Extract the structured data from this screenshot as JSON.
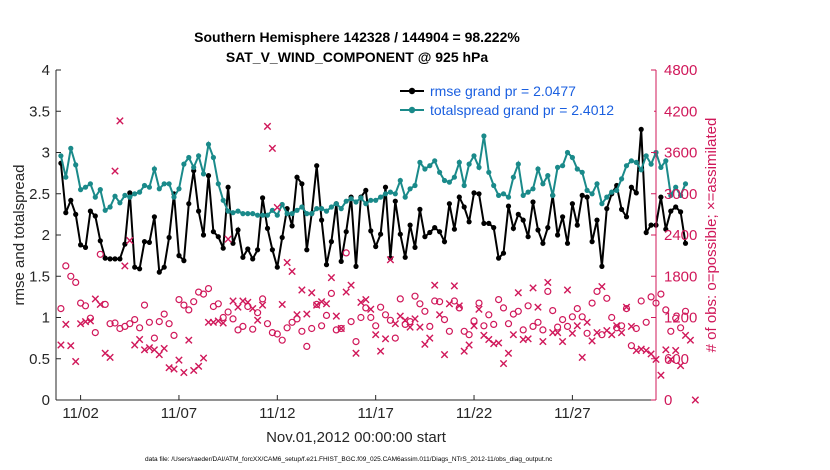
{
  "chart_data": {
    "type": "line",
    "title": "Southern Hemisphere 142328 / 144904 = 98.222%",
    "subtitle": "SAT_V_WIND_COMPONENT @ 925 hPa",
    "xlabel": "Nov.01,2012 00:00:00 start",
    "ylabel_left": "rmse and totalspread",
    "ylabel_right": "# of obs: o=possible; ×=assimilated",
    "footnote": "data file: /Users/raeder/DAI/ATM_forcXX/CAM6_setup/f.e21.FHIST_BGC.f09_025.CAM6assim.011/Diags_NTrS_2012-11/obs_diag_output.nc",
    "x_ticks": [
      "11/02",
      "11/07",
      "11/12",
      "11/17",
      "11/22",
      "11/27"
    ],
    "x_tick_days": [
      2,
      7,
      12,
      17,
      22,
      27
    ],
    "x_range_days": [
      0.75,
      31.25
    ],
    "y_left_ticks": [
      "0",
      "0.5",
      "1",
      "1.5",
      "2",
      "2.5",
      "3",
      "3.5",
      "4"
    ],
    "y_left_range": [
      0,
      4
    ],
    "y_right_ticks": [
      "0",
      "600",
      "1200",
      "1800",
      "2400",
      "3000",
      "3600",
      "4200",
      "4800"
    ],
    "y_right_range": [
      0,
      4800
    ],
    "grid": false,
    "legend_position": "top-right",
    "series": [
      {
        "name": "rmse grand pr = 2.0477",
        "color": "#000000",
        "axis": "left",
        "marker": "dot",
        "values": [
          2.87,
          2.27,
          2.42,
          2.25,
          1.88,
          1.85,
          2.29,
          2.23,
          1.93,
          1.72,
          1.71,
          1.71,
          1.71,
          1.89,
          2.51,
          1.61,
          1.59,
          1.92,
          1.91,
          2.22,
          1.55,
          1.61,
          1.97,
          2.5,
          1.75,
          1.69,
          2.38,
          2.78,
          2.29,
          2.0,
          2.72,
          2.04,
          1.98,
          1.84,
          2.58,
          1.9,
          2.06,
          1.73,
          1.83,
          1.71,
          1.82,
          2.45,
          2.08,
          1.82,
          1.61,
          1.97,
          2.32,
          2.11,
          2.7,
          2.62,
          1.82,
          2.26,
          2.84,
          2.18,
          1.64,
          1.92,
          2.38,
          1.68,
          2.04,
          2.46,
          1.62,
          2.46,
          2.54,
          2.05,
          1.86,
          2.01,
          2.58,
          1.72,
          2.41,
          2.01,
          1.73,
          2.12,
          1.85,
          2.31,
          1.98,
          2.03,
          2.09,
          2.04,
          1.92,
          2.38,
          2.07,
          2.46,
          2.34,
          2.16,
          2.51,
          2.5,
          2.14,
          2.14,
          2.09,
          1.72,
          1.78,
          2.35,
          2.08,
          2.25,
          2.18,
          1.98,
          2.4,
          2.06,
          1.9,
          2.09,
          2.48,
          2.0,
          2.22,
          1.9,
          2.38,
          2.12,
          2.48,
          2.46,
          1.92,
          2.18,
          1.62,
          2.32,
          2.5,
          2.6,
          2.31,
          2.22,
          2.58,
          2.51,
          3.28,
          2.03,
          2.12,
          2.12,
          2.46,
          2.07,
          2.29,
          2.34,
          2.28,
          1.9
        ],
        "x_start_day": 1.0,
        "x_step_days": 0.25
      },
      {
        "name": "totalspread grand pr = 2.4012",
        "color": "#1a8a8a",
        "axis": "left",
        "marker": "dot",
        "values": [
          2.96,
          2.7,
          3.05,
          2.85,
          2.55,
          2.58,
          2.62,
          2.46,
          2.55,
          2.3,
          2.34,
          2.47,
          2.39,
          2.48,
          2.46,
          2.5,
          2.52,
          2.6,
          2.58,
          2.8,
          2.56,
          2.62,
          2.62,
          2.46,
          2.56,
          2.86,
          2.94,
          2.82,
          2.96,
          2.74,
          3.1,
          2.94,
          2.62,
          2.42,
          2.29,
          2.27,
          2.29,
          2.26,
          2.26,
          2.26,
          2.24,
          2.24,
          2.24,
          2.3,
          2.24,
          2.37,
          2.26,
          2.26,
          2.3,
          2.34,
          2.26,
          2.26,
          2.32,
          2.32,
          2.29,
          2.34,
          2.38,
          2.32,
          2.41,
          2.44,
          2.4,
          2.45,
          2.38,
          2.42,
          2.42,
          2.46,
          2.5,
          2.52,
          2.5,
          2.66,
          2.46,
          2.56,
          2.6,
          2.88,
          2.8,
          2.84,
          2.9,
          2.76,
          2.66,
          2.64,
          2.7,
          2.88,
          2.6,
          2.86,
          2.96,
          2.82,
          3.2,
          2.76,
          2.6,
          2.48,
          2.5,
          2.46,
          2.7,
          2.86,
          2.48,
          2.52,
          2.56,
          2.8,
          2.62,
          2.72,
          2.48,
          2.82,
          2.84,
          3.0,
          2.94,
          2.8,
          2.76,
          2.54,
          2.5,
          2.62,
          2.38,
          2.46,
          2.52,
          2.54,
          2.68,
          2.84,
          2.9,
          2.88,
          2.79,
          2.96,
          2.86,
          3.0,
          2.82,
          2.9,
          2.48,
          2.58,
          2.48,
          2.62
        ],
        "x_start_day": 1.0,
        "x_step_days": 0.25
      },
      {
        "name": "obs possible",
        "color": "#d0185a",
        "axis": "right",
        "marker": "o",
        "values": [
          1330,
          1950,
          1800,
          1710,
          1410,
          1370,
          1190,
          980,
          2120,
          1390,
          1110,
          1120,
          1040,
          1070,
          1110,
          1170,
          1050,
          1380,
          1130,
          900,
          1140,
          1250,
          1110,
          940,
          1460,
          1380,
          1310,
          1430,
          1570,
          1540,
          1620,
          1360,
          1400,
          1200,
          1280,
          1180,
          1020,
          1070,
          1360,
          1030,
          1270,
          1470,
          1110,
          980,
          960,
          870,
          1050,
          1130,
          1180,
          1000,
          780,
          1040,
          1390,
          1080,
          1230,
          1550,
          1020,
          1040,
          2140,
          1140,
          850,
          1200,
          1340,
          1200,
          1080,
          1350,
          1240,
          1160,
          900,
          1470,
          1100,
          1140,
          1510,
          1400,
          1290,
          1070,
          1440,
          1430,
          1170,
          1000,
          1440,
          1340,
          1000,
          950,
          1150,
          1410,
          1080,
          1240,
          1100,
          1460,
          1340,
          1110,
          1250,
          1290,
          1020,
          1370,
          1070,
          1130,
          1020,
          1580,
          1300,
          1060,
          1170,
          1070,
          1210,
          1330,
          1210,
          970,
          1410,
          1580,
          950,
          1480,
          1200,
          1050,
          1080,
          1330,
          790,
          1040,
          1440,
          1130,
          1500,
          1410,
          1540,
          1310,
          1000,
          1190,
          1050,
          1290
        ],
        "x_start_day": 1.0,
        "x_step_days": 0.25
      },
      {
        "name": "obs assimilated",
        "color": "#d0185a",
        "axis": "right",
        "marker": "x",
        "values": [
          800,
          1100,
          790,
          560,
          1110,
          1140,
          1150,
          1470,
          1390,
          680,
          620,
          3330,
          4060,
          1950,
          2320,
          800,
          880,
          730,
          760,
          730,
          660,
          750,
          470,
          450,
          580,
          400,
          870,
          430,
          490,
          610,
          1130,
          1130,
          1150,
          1120,
          2340,
          1440,
          1350,
          1440,
          1420,
          1330,
          1160,
          1380,
          3980,
          3660,
          2800,
          1390,
          2000,
          1870,
          1240,
          1600,
          1250,
          1560,
          1380,
          1430,
          1400,
          1780,
          1220,
          1040,
          1570,
          1670,
          680,
          1420,
          1460,
          1320,
          950,
          710,
          890,
          2040,
          1110,
          1220,
          1160,
          1060,
          1180,
          1060,
          810,
          900,
          1670,
          1240,
          660,
          1400,
          1660,
          1370,
          710,
          800,
          1080,
          1320,
          940,
          880,
          820,
          830,
          530,
          680,
          950,
          1560,
          880,
          890,
          1630,
          1350,
          850,
          1710,
          980,
          980,
          850,
          1600,
          970,
          1080,
          620,
          1130,
          860,
          980,
          1650,
          1010,
          950,
          1080,
          980,
          1350,
          1070,
          720,
          740,
          720,
          670,
          590,
          360,
          730,
          590,
          720,
          500,
          940,
          870,
          0
        ],
        "x_start_day": 1.0,
        "x_step_days": 0.25
      }
    ]
  }
}
